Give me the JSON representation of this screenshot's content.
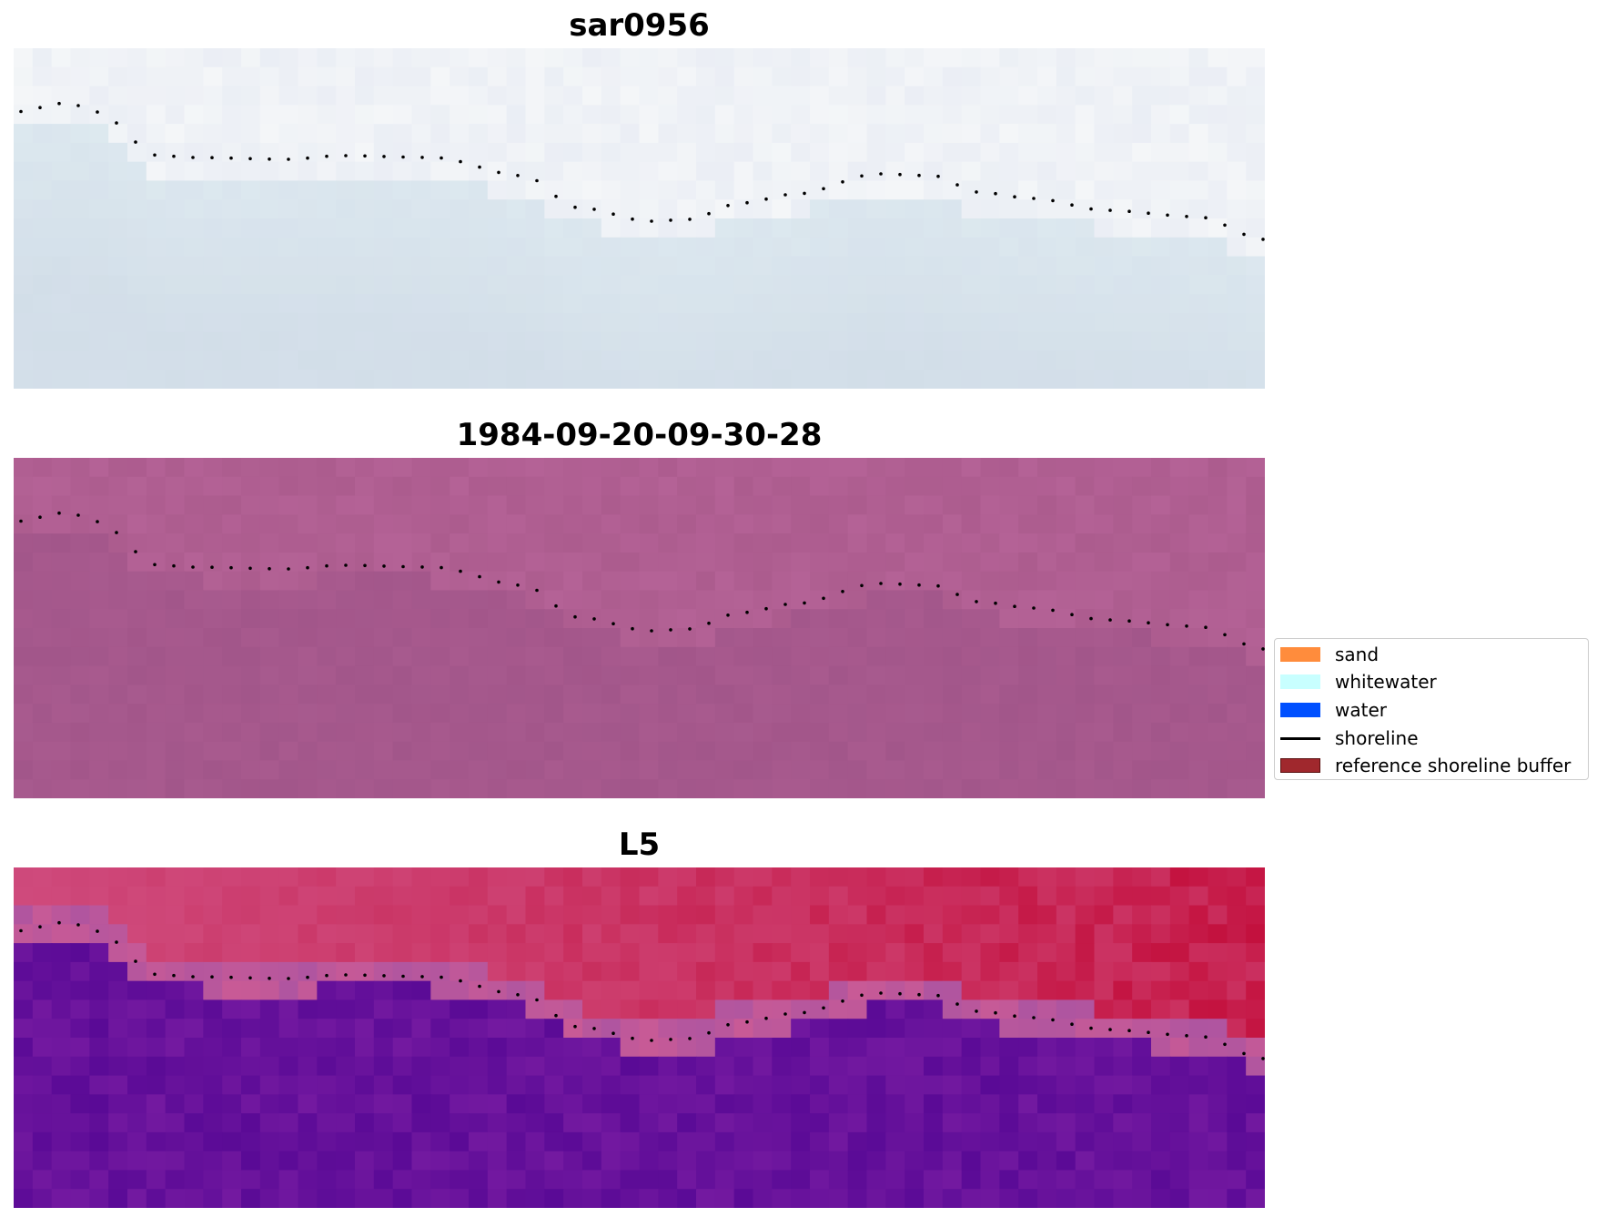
{
  "panels": [
    {
      "title": "sar0956",
      "kind": "rgb"
    },
    {
      "title": "1984-09-20-09-30-28",
      "kind": "index"
    },
    {
      "title": "L5",
      "kind": "classified"
    }
  ],
  "legend": {
    "items": [
      {
        "label": "sand",
        "color": "#ff8c3c",
        "type": "patch"
      },
      {
        "label": "whitewater",
        "color": "#c8ffff",
        "type": "patch"
      },
      {
        "label": "water",
        "color": "#0050ff",
        "type": "patch"
      },
      {
        "label": "shoreline",
        "color": "#000000",
        "type": "line"
      },
      {
        "label": "reference shoreline buffer",
        "color": "#a0282d",
        "type": "patch"
      }
    ]
  }
}
